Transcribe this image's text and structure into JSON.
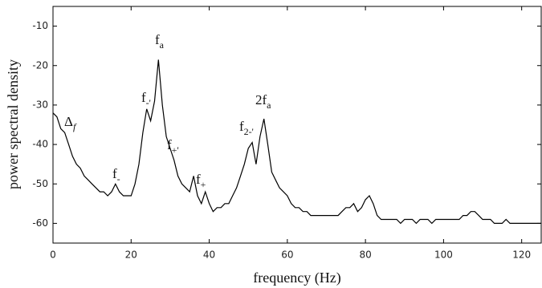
{
  "chart_data": {
    "type": "line",
    "xlabel": "frequency (Hz)",
    "ylabel": "power spectral density",
    "color": "#000000",
    "xlim": [
      0,
      125
    ],
    "ylim": [
      -65,
      -5
    ],
    "xticks": [
      0,
      20,
      40,
      60,
      80,
      100,
      120
    ],
    "yticks": [
      -60,
      -50,
      -40,
      -30,
      -20,
      -10
    ],
    "grid": false,
    "x": [
      0,
      1,
      2,
      3,
      4,
      5,
      6,
      7,
      8,
      9,
      10,
      11,
      12,
      13,
      14,
      15,
      16,
      17,
      18,
      19,
      20,
      21,
      22,
      23,
      24,
      25,
      26,
      27,
      28,
      29,
      30,
      31,
      32,
      33,
      34,
      35,
      36,
      37,
      38,
      39,
      40,
      41,
      42,
      43,
      44,
      45,
      46,
      47,
      48,
      49,
      50,
      51,
      52,
      53,
      54,
      55,
      56,
      57,
      58,
      59,
      60,
      61,
      62,
      63,
      64,
      65,
      66,
      67,
      68,
      69,
      70,
      71,
      72,
      73,
      74,
      75,
      76,
      77,
      78,
      79,
      80,
      81,
      82,
      83,
      84,
      85,
      86,
      87,
      88,
      89,
      90,
      91,
      92,
      93,
      94,
      95,
      96,
      97,
      98,
      99,
      100,
      101,
      102,
      103,
      104,
      105,
      106,
      107,
      108,
      109,
      110,
      111,
      112,
      113,
      114,
      115,
      116,
      117,
      118,
      119,
      120,
      121,
      122,
      123,
      124,
      125
    ],
    "values": [
      -32,
      -33,
      -36,
      -37,
      -40,
      -43,
      -45,
      -46,
      -48,
      -49,
      -50,
      -51,
      -52,
      -52,
      -53,
      -52,
      -50,
      -52,
      -53,
      -53,
      -53,
      -50,
      -45,
      -37,
      -31,
      -34,
      -29,
      -18.5,
      -30,
      -38,
      -41,
      -44,
      -48,
      -50,
      -51,
      -52,
      -48,
      -53,
      -55,
      -52,
      -55,
      -57,
      -56,
      -56,
      -55,
      -55,
      -53,
      -51,
      -48,
      -45,
      -41,
      -39.5,
      -45,
      -38,
      -33.5,
      -40,
      -47,
      -49,
      -51,
      -52,
      -53,
      -55,
      -56,
      -56,
      -57,
      -57,
      -58,
      -58,
      -58,
      -58,
      -58,
      -58,
      -58,
      -58,
      -57,
      -56,
      -56,
      -55,
      -57,
      -56,
      -54,
      -53,
      -55,
      -58,
      -59,
      -59,
      -59,
      -59,
      -59,
      -60,
      -59,
      -59,
      -59,
      -60,
      -59,
      -59,
      -59,
      -60,
      -59,
      -59,
      -59,
      -59,
      -59,
      -59,
      -59,
      -58,
      -58,
      -57,
      -57,
      -58,
      -59,
      -59,
      -59,
      -60,
      -60,
      -60,
      -59,
      -60,
      -60,
      -60,
      -60,
      -60,
      -60,
      -60,
      -60,
      -60
    ],
    "annotations": [
      {
        "text": "Δ",
        "sub": "f"
      },
      {
        "text": "f",
        "sub": "-"
      },
      {
        "text": "f",
        "sub": "-'"
      },
      {
        "text": "f",
        "sub": "a"
      },
      {
        "text": "f",
        "sub": "+'"
      },
      {
        "text": "f",
        "sub": "+"
      },
      {
        "text": "f",
        "sub": "2-'"
      },
      {
        "text": "2f",
        "sub": "a"
      }
    ]
  }
}
